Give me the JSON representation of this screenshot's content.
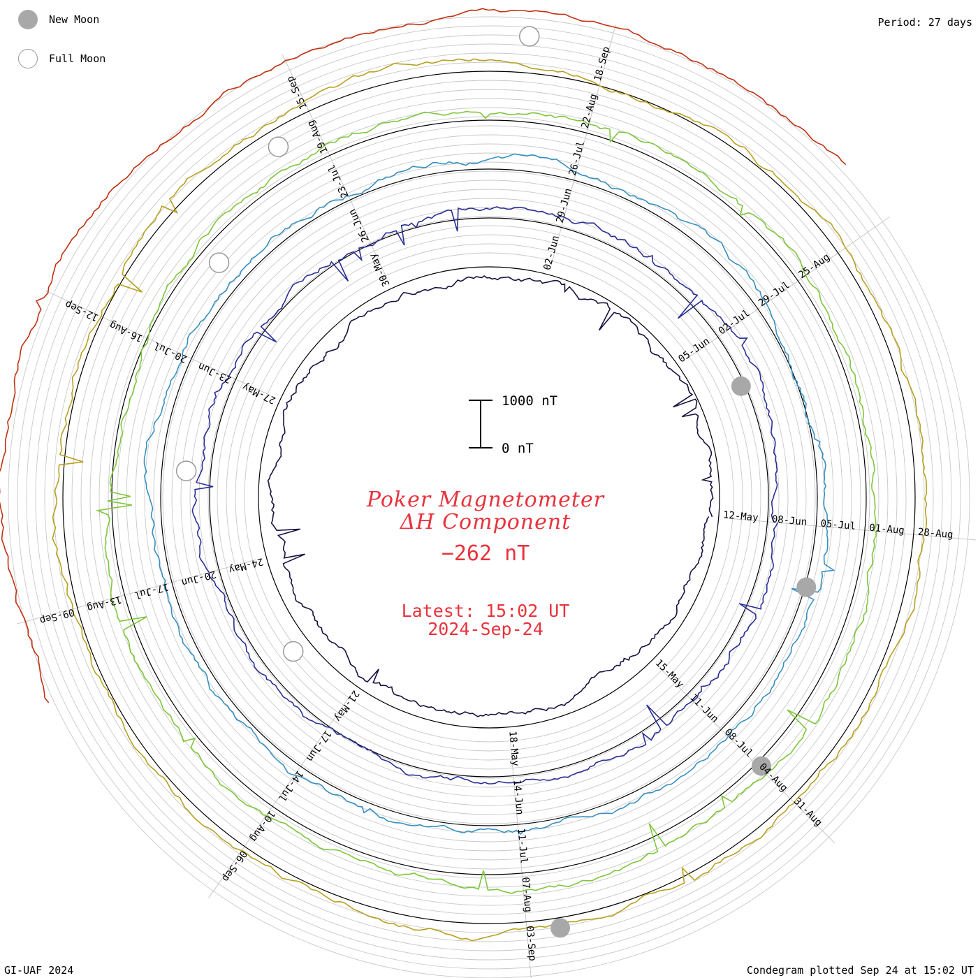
{
  "legend": {
    "new_moon": "New Moon",
    "full_moon": "Full Moon"
  },
  "period_label": "Period: 27 days",
  "title": {
    "line1": "Poker Magnetometer",
    "line2": "ΔH Component",
    "value": "−262 nT"
  },
  "latest": {
    "time": "Latest: 15:02 UT",
    "date": "2024-Sep-24"
  },
  "footer": {
    "left": "GI-UAF 2024",
    "right": "Condegram plotted Sep 24 at 15:02 UT"
  },
  "colors": {
    "title": "#e8323c",
    "grid": "#c0c0c0",
    "baseline": "#000000",
    "moon_fill": "#a8a8a8"
  },
  "chart_data": {
    "type": "line",
    "projection": "condegram-spiral",
    "period_days": 27,
    "scale_bar": {
      "top_label": "1000 nT",
      "bottom_label": "0 nT",
      "value_nT": 1000
    },
    "cycles": [
      {
        "index": 0,
        "color": "#1a0f40",
        "tick_labels": [
          "12-May",
          "15-May",
          "18-May",
          "21-May",
          "24-May",
          "27-May",
          "30-May",
          "02-Jun",
          "05-Jun"
        ]
      },
      {
        "index": 1,
        "color": "#2a2f95",
        "tick_labels": [
          "08-Jun",
          "11-Jun",
          "14-Jun",
          "17-Jun",
          "20-Jun",
          "23-Jun",
          "26-Jun",
          "29-Jun",
          "02-Jul"
        ]
      },
      {
        "index": 2,
        "color": "#3890c0",
        "tick_labels": [
          "05-Jul",
          "08-Jul",
          "11-Jul",
          "14-Jul",
          "17-Jul",
          "20-Jul",
          "23-Jul",
          "26-Jul",
          "29-Jul"
        ]
      },
      {
        "index": 3,
        "color": "#7ec63a",
        "tick_labels": [
          "01-Aug",
          "04-Aug",
          "07-Aug",
          "10-Aug",
          "13-Aug",
          "16-Aug",
          "19-Aug",
          "22-Aug",
          "25-Aug"
        ]
      },
      {
        "index": 4,
        "color": "#b8a020",
        "tick_labels": [
          "28-Aug",
          "31-Aug",
          "03-Sep",
          "06-Sep",
          "09-Sep",
          "12-Sep",
          "15-Sep",
          "18-Sep"
        ]
      },
      {
        "index": 5,
        "color": "#c03010",
        "tick_labels": []
      }
    ],
    "moons": [
      {
        "type": "new",
        "cycle": 0,
        "day_fraction": 0.92
      },
      {
        "type": "new",
        "cycle": 2,
        "day_fraction": 0.03
      },
      {
        "type": "new",
        "cycle": 3,
        "day_fraction": 0.11
      },
      {
        "type": "new",
        "cycle": 4,
        "day_fraction": 0.21
      },
      {
        "type": "full",
        "cycle": 0,
        "day_fraction": 0.38
      },
      {
        "type": "full",
        "cycle": 1,
        "day_fraction": 0.5
      },
      {
        "type": "full",
        "cycle": 2,
        "day_fraction": 0.6
      },
      {
        "type": "full",
        "cycle": 3,
        "day_fraction": 0.65
      },
      {
        "type": "full",
        "cycle": 4,
        "day_fraction": 0.75
      }
    ]
  }
}
